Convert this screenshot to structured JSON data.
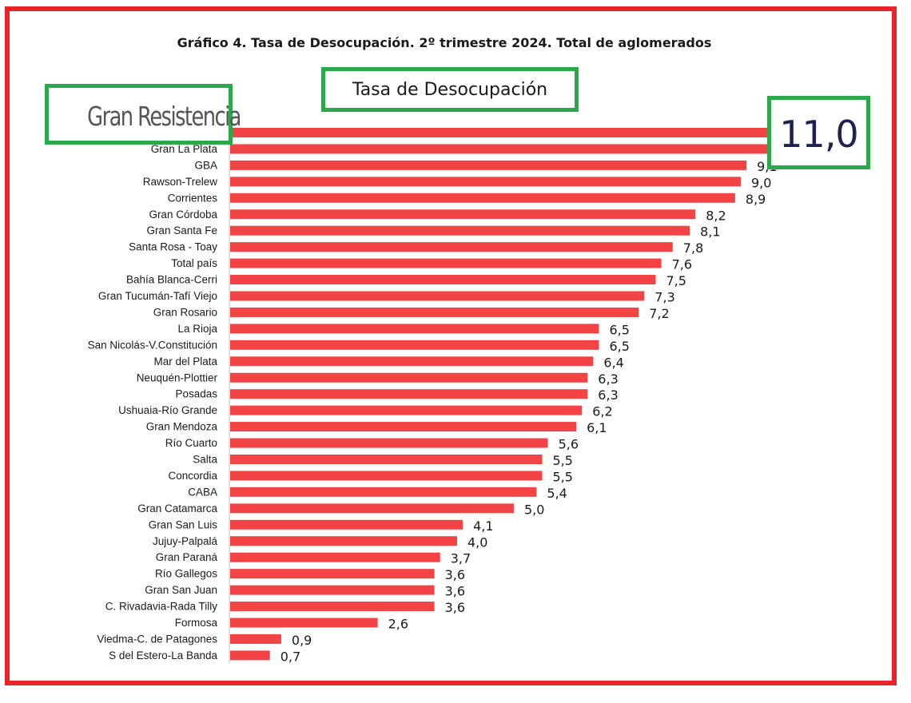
{
  "chart_data": {
    "type": "bar",
    "orientation": "horizontal",
    "title": "Gráfico 4. Tasa de Desocupación. 2º trimestre 2024. Total de aglomerados",
    "series_name": "Tasa de Desocupación",
    "bar_color": "#f24444",
    "highlight_color": "#2aa84a",
    "frame_color": "#e8232a",
    "categories": [
      "Gran Resistencia",
      "Gran La Plata",
      "GBA",
      "Rawson-Trelew",
      "Corrientes",
      "Gran Córdoba",
      "Gran Santa Fe",
      "Santa Rosa - Toay",
      "Total país",
      "Bahía Blanca-Cerri",
      "Gran Tucumán-Tafí Viejo",
      "Gran Rosario",
      "La Rioja",
      "San Nicolás-V.Constitución",
      "Mar del Plata",
      "Neuquén-Plottier",
      "Posadas",
      "Ushuaia-Río Grande",
      "Gran Mendoza",
      "Río Cuarto",
      "Salta",
      "Concordia",
      "CABA",
      "Gran Catamarca",
      "Gran San Luis",
      "Jujuy-Palpalá",
      "Gran Paraná",
      "Río Gallegos",
      "Gran San Juan",
      "C. Rivadavia-Rada Tilly",
      "Formosa",
      "Viedma-C. de Patagones",
      "S del Estero-La Banda"
    ],
    "values": [
      11.0,
      9.9,
      9.1,
      9.0,
      8.9,
      8.2,
      8.1,
      7.8,
      7.6,
      7.5,
      7.3,
      7.2,
      6.5,
      6.5,
      6.4,
      6.3,
      6.3,
      6.2,
      6.1,
      5.6,
      5.5,
      5.5,
      5.4,
      5.0,
      4.1,
      4.0,
      3.7,
      3.6,
      3.6,
      3.6,
      2.6,
      0.9,
      0.7
    ],
    "value_labels": [
      "11,0",
      "9,9",
      "9,1",
      "9,0",
      "8,9",
      "8,2",
      "8,1",
      "7,8",
      "7,6",
      "7,5",
      "7,3",
      "7,2",
      "6,5",
      "6,5",
      "6,4",
      "6,3",
      "6,3",
      "6,2",
      "6,1",
      "5,6",
      "5,5",
      "5,5",
      "5,4",
      "5,0",
      "4,1",
      "4,0",
      "3,7",
      "3,6",
      "3,6",
      "3,6",
      "2,6",
      "0,9",
      "0,7"
    ],
    "xlim": [
      0,
      11.0
    ],
    "grid": false
  },
  "highlights": {
    "series_label": "Tasa de Desocupación",
    "category_label": "Gran Resistencia",
    "value_label": "11,0"
  }
}
